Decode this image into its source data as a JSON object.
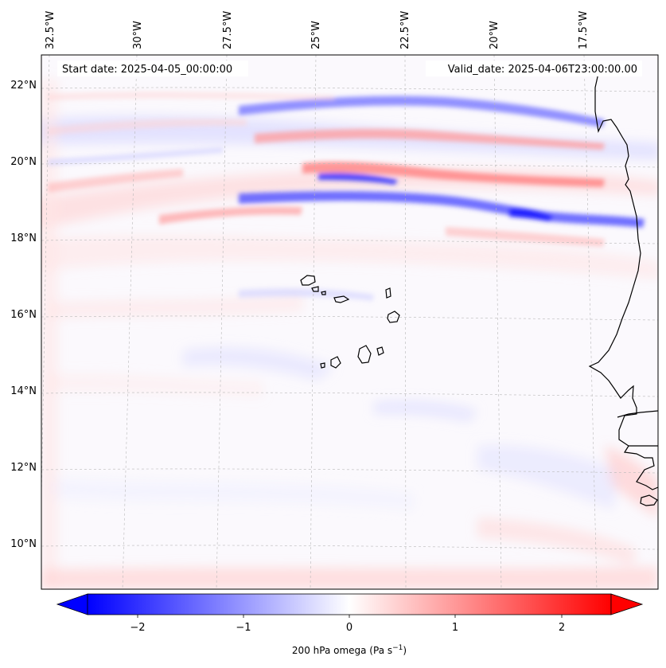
{
  "map": {
    "start_label": "Start date: 2025-04-05_00:00:00",
    "valid_label": "Valid_date: 2025-04-06T23:00:00.00",
    "lon_ticks": [
      "32.5°W",
      "30°W",
      "27.5°W",
      "25°W",
      "22.5°W",
      "20°W",
      "17.5°W"
    ],
    "lat_ticks": [
      "22°N",
      "20°N",
      "18°N",
      "16°N",
      "14°N",
      "12°N",
      "10°N"
    ]
  },
  "colorbar": {
    "ticks": [
      "−2",
      "−1",
      "0",
      "1",
      "2"
    ],
    "label_main": "200 hPa omega (Pa s",
    "label_exp": "−1",
    "label_close": ")",
    "vmin": -2.7,
    "vmax": 2.7,
    "colors": {
      "negative": "#0000ff",
      "zero": "#ffffff",
      "positive": "#ff0000"
    }
  },
  "chart_data": {
    "type": "heatmap",
    "title": "",
    "xlabel": "",
    "ylabel": "",
    "variable": "200 hPa omega (Pa s−1)",
    "colorbar_range": [
      -2.7,
      2.7
    ],
    "colorbar_ticks": [
      -2,
      -1,
      0,
      1,
      2
    ],
    "longitude_ticks_deg_w": [
      32.5,
      30,
      27.5,
      25,
      22.5,
      20,
      17.5
    ],
    "latitude_ticks_deg_n": [
      22,
      20,
      18,
      16,
      14,
      12,
      10
    ],
    "extent": {
      "lon_w": [
        34.0,
        16.0
      ],
      "lat_n": [
        8.8,
        22.8
      ]
    }
  }
}
